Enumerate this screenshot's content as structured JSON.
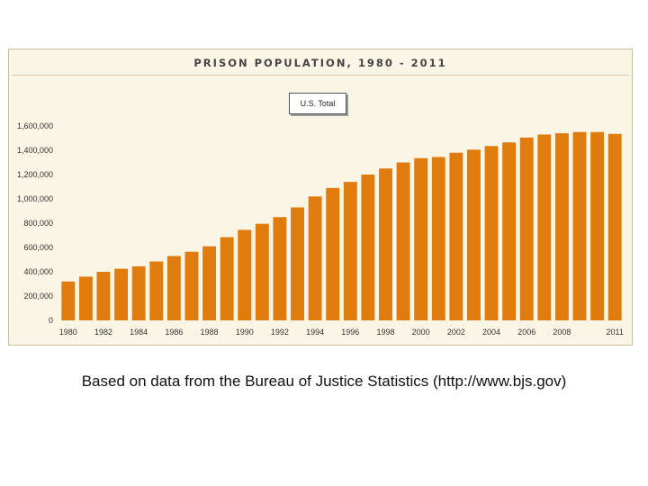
{
  "chart_data": {
    "type": "bar",
    "title": "PRISON POPULATION, 1980 - 2011",
    "selector_label": "U.S. Total",
    "categories": [
      "1980",
      "1981",
      "1982",
      "1983",
      "1984",
      "1985",
      "1986",
      "1987",
      "1988",
      "1989",
      "1990",
      "1991",
      "1992",
      "1993",
      "1994",
      "1995",
      "1996",
      "1997",
      "1998",
      "1999",
      "2000",
      "2001",
      "2002",
      "2003",
      "2004",
      "2005",
      "2006",
      "2007",
      "2008",
      "2009",
      "2010",
      "2011"
    ],
    "values": [
      320000,
      360000,
      400000,
      425000,
      445000,
      485000,
      530000,
      565000,
      610000,
      685000,
      745000,
      795000,
      850000,
      930000,
      1020000,
      1090000,
      1140000,
      1200000,
      1250000,
      1300000,
      1335000,
      1345000,
      1380000,
      1405000,
      1435000,
      1465000,
      1505000,
      1530000,
      1540000,
      1550000,
      1550000,
      1535000
    ],
    "xtick_labels": [
      {
        "label": "1980",
        "year": "1980"
      },
      {
        "label": "1982",
        "year": "1982"
      },
      {
        "label": "1984",
        "year": "1984"
      },
      {
        "label": "1986",
        "year": "1986"
      },
      {
        "label": "1988",
        "year": "1988"
      },
      {
        "label": "1990",
        "year": "1990"
      },
      {
        "label": "1992",
        "year": "1992"
      },
      {
        "label": "1994",
        "year": "1994"
      },
      {
        "label": "1996",
        "year": "1996"
      },
      {
        "label": "1998",
        "year": "1998"
      },
      {
        "label": "2000",
        "year": "2000"
      },
      {
        "label": "2002",
        "year": "2002"
      },
      {
        "label": "2004",
        "year": "2004"
      },
      {
        "label": "2006",
        "year": "2006"
      },
      {
        "label": "2008",
        "year": "2008"
      },
      {
        "label": "2011",
        "year": "2011"
      }
    ],
    "ytick_labels": [
      "0",
      "200,000",
      "400,000",
      "600,000",
      "800,000",
      "1,000,000",
      "1,200,000",
      "1,400,000",
      "1,600,000"
    ],
    "ylim": [
      0,
      1600000
    ],
    "xlabel": "",
    "ylabel": "",
    "grid": false,
    "bar_color": "#e07b0e"
  },
  "caption": "Based on data from the Bureau of Justice Statistics (http://www.bjs.gov)"
}
